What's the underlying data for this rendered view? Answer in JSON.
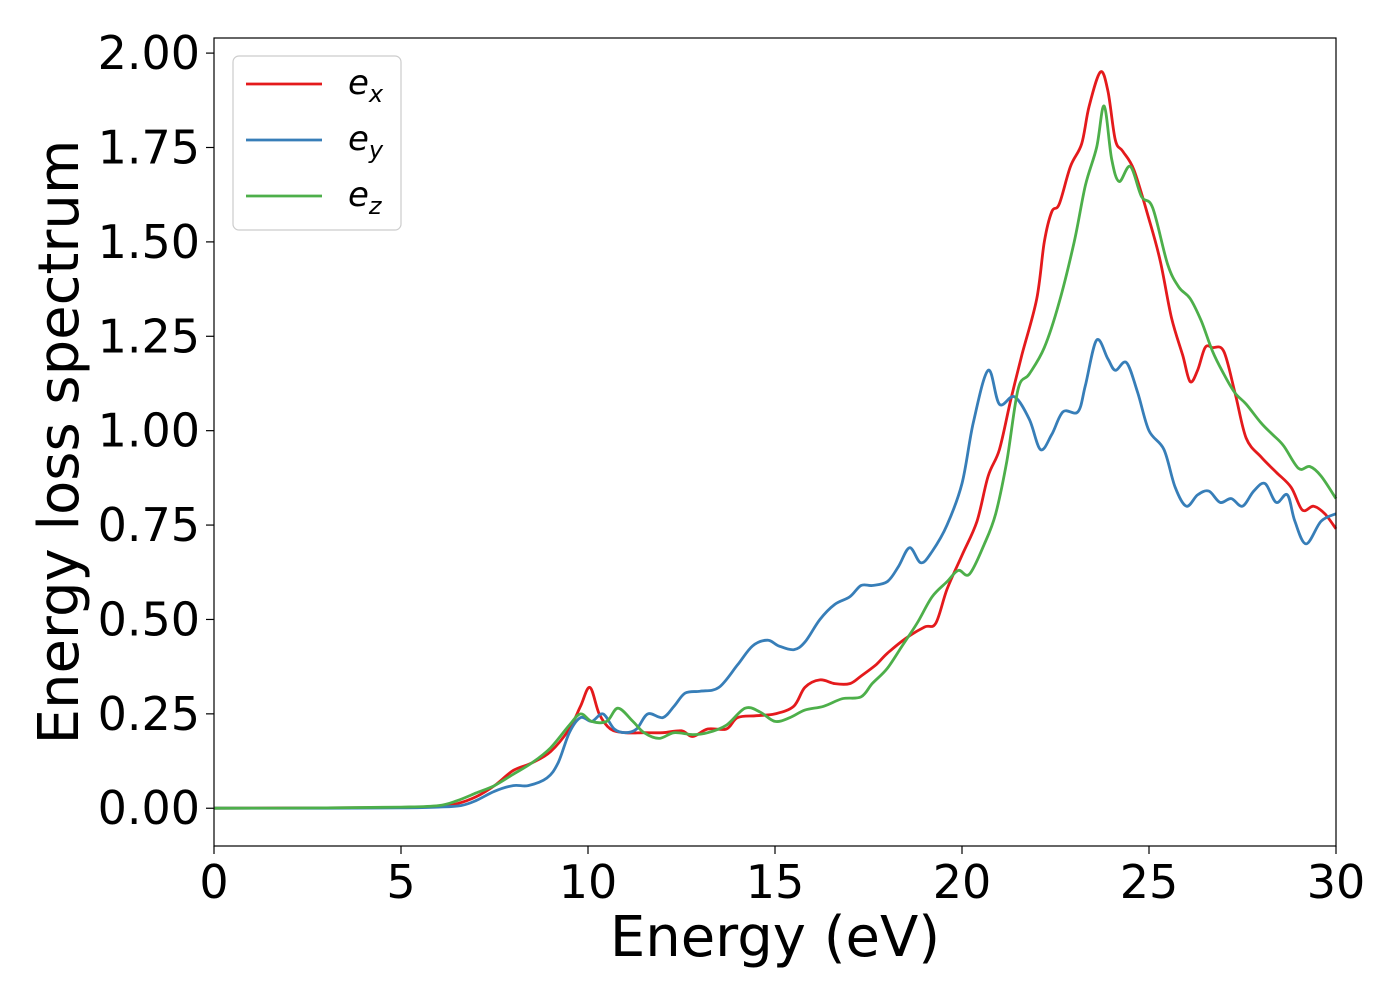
{
  "chart_data": {
    "type": "line",
    "title": "",
    "xlabel": "Energy (eV)",
    "ylabel": "Energy loss spectrum",
    "xlim": [
      0,
      30
    ],
    "ylim": [
      -0.1,
      2.04
    ],
    "xticks": [
      0,
      5,
      10,
      15,
      20,
      25,
      30
    ],
    "xtick_labels": [
      "0",
      "5",
      "10",
      "15",
      "20",
      "25",
      "30"
    ],
    "yticks": [
      0,
      0.25,
      0.5,
      0.75,
      1.0,
      1.25,
      1.5,
      1.75,
      2.0
    ],
    "ytick_labels": [
      "0.00",
      "0.25",
      "0.50",
      "0.75",
      "1.00",
      "1.25",
      "1.50",
      "1.75",
      "2.00"
    ],
    "grid": false,
    "legend_position": "top-left",
    "series": [
      {
        "name": "e",
        "subscript": "x",
        "color": "#e41a1c",
        "points": [
          [
            0,
            0
          ],
          [
            3,
            0.001
          ],
          [
            5,
            0.002
          ],
          [
            6,
            0.005
          ],
          [
            6.5,
            0.012
          ],
          [
            7,
            0.03
          ],
          [
            7.5,
            0.06
          ],
          [
            8,
            0.1
          ],
          [
            8.5,
            0.12
          ],
          [
            9,
            0.15
          ],
          [
            9.5,
            0.21
          ],
          [
            9.8,
            0.27
          ],
          [
            10.05,
            0.32
          ],
          [
            10.3,
            0.25
          ],
          [
            10.6,
            0.21
          ],
          [
            11,
            0.2
          ],
          [
            11.5,
            0.2
          ],
          [
            12,
            0.2
          ],
          [
            12.5,
            0.205
          ],
          [
            12.8,
            0.19
          ],
          [
            13.2,
            0.21
          ],
          [
            13.7,
            0.21
          ],
          [
            14,
            0.24
          ],
          [
            14.5,
            0.245
          ],
          [
            15,
            0.25
          ],
          [
            15.5,
            0.27
          ],
          [
            15.8,
            0.32
          ],
          [
            16.2,
            0.34
          ],
          [
            16.6,
            0.33
          ],
          [
            17,
            0.33
          ],
          [
            17.3,
            0.35
          ],
          [
            17.7,
            0.38
          ],
          [
            18,
            0.41
          ],
          [
            18.5,
            0.45
          ],
          [
            19,
            0.48
          ],
          [
            19.3,
            0.49
          ],
          [
            19.6,
            0.58
          ],
          [
            20,
            0.67
          ],
          [
            20.4,
            0.76
          ],
          [
            20.7,
            0.88
          ],
          [
            21,
            0.95
          ],
          [
            21.3,
            1.08
          ],
          [
            21.6,
            1.2
          ],
          [
            22,
            1.35
          ],
          [
            22.2,
            1.5
          ],
          [
            22.4,
            1.58
          ],
          [
            22.6,
            1.6
          ],
          [
            22.9,
            1.7
          ],
          [
            23.2,
            1.76
          ],
          [
            23.4,
            1.86
          ],
          [
            23.7,
            1.95
          ],
          [
            23.9,
            1.9
          ],
          [
            24.1,
            1.77
          ],
          [
            24.3,
            1.74
          ],
          [
            24.6,
            1.69
          ],
          [
            25,
            1.56
          ],
          [
            25.3,
            1.45
          ],
          [
            25.6,
            1.3
          ],
          [
            25.9,
            1.2
          ],
          [
            26.1,
            1.13
          ],
          [
            26.3,
            1.16
          ],
          [
            26.5,
            1.22
          ],
          [
            26.7,
            1.22
          ],
          [
            27,
            1.21
          ],
          [
            27.3,
            1.1
          ],
          [
            27.6,
            0.98
          ],
          [
            28,
            0.93
          ],
          [
            28.4,
            0.89
          ],
          [
            28.8,
            0.85
          ],
          [
            29.1,
            0.79
          ],
          [
            29.4,
            0.8
          ],
          [
            29.7,
            0.78
          ],
          [
            30,
            0.74
          ]
        ]
      },
      {
        "name": "e",
        "subscript": "y",
        "color": "#377eb8",
        "points": [
          [
            0,
            0
          ],
          [
            3,
            0.0
          ],
          [
            5,
            0.001
          ],
          [
            6,
            0.003
          ],
          [
            6.6,
            0.007
          ],
          [
            7,
            0.02
          ],
          [
            7.5,
            0.045
          ],
          [
            8,
            0.06
          ],
          [
            8.4,
            0.06
          ],
          [
            8.9,
            0.08
          ],
          [
            9.2,
            0.12
          ],
          [
            9.5,
            0.2
          ],
          [
            9.8,
            0.24
          ],
          [
            10.1,
            0.23
          ],
          [
            10.4,
            0.25
          ],
          [
            10.7,
            0.21
          ],
          [
            11,
            0.2
          ],
          [
            11.3,
            0.21
          ],
          [
            11.6,
            0.25
          ],
          [
            12,
            0.24
          ],
          [
            12.3,
            0.27
          ],
          [
            12.6,
            0.305
          ],
          [
            13,
            0.31
          ],
          [
            13.5,
            0.32
          ],
          [
            14,
            0.38
          ],
          [
            14.4,
            0.43
          ],
          [
            14.8,
            0.445
          ],
          [
            15.1,
            0.43
          ],
          [
            15.5,
            0.42
          ],
          [
            15.8,
            0.44
          ],
          [
            16.2,
            0.5
          ],
          [
            16.6,
            0.54
          ],
          [
            17,
            0.56
          ],
          [
            17.3,
            0.59
          ],
          [
            17.6,
            0.59
          ],
          [
            18,
            0.6
          ],
          [
            18.3,
            0.64
          ],
          [
            18.6,
            0.69
          ],
          [
            18.9,
            0.65
          ],
          [
            19.2,
            0.68
          ],
          [
            19.6,
            0.75
          ],
          [
            20,
            0.86
          ],
          [
            20.3,
            1.02
          ],
          [
            20.7,
            1.16
          ],
          [
            21,
            1.07
          ],
          [
            21.4,
            1.09
          ],
          [
            21.8,
            1.03
          ],
          [
            22.1,
            0.95
          ],
          [
            22.4,
            0.99
          ],
          [
            22.7,
            1.05
          ],
          [
            23.1,
            1.05
          ],
          [
            23.3,
            1.12
          ],
          [
            23.6,
            1.24
          ],
          [
            23.9,
            1.19
          ],
          [
            24.1,
            1.16
          ],
          [
            24.4,
            1.18
          ],
          [
            24.7,
            1.1
          ],
          [
            25,
            1.0
          ],
          [
            25.4,
            0.95
          ],
          [
            25.7,
            0.85
          ],
          [
            26,
            0.8
          ],
          [
            26.3,
            0.83
          ],
          [
            26.6,
            0.84
          ],
          [
            26.9,
            0.81
          ],
          [
            27.2,
            0.82
          ],
          [
            27.5,
            0.8
          ],
          [
            27.8,
            0.84
          ],
          [
            28.1,
            0.86
          ],
          [
            28.4,
            0.81
          ],
          [
            28.7,
            0.83
          ],
          [
            28.9,
            0.76
          ],
          [
            29.2,
            0.7
          ],
          [
            29.6,
            0.76
          ],
          [
            30,
            0.78
          ]
        ]
      },
      {
        "name": "e",
        "subscript": "z",
        "color": "#4daf4a",
        "points": [
          [
            0,
            0
          ],
          [
            3,
            0.001
          ],
          [
            5,
            0.003
          ],
          [
            6,
            0.007
          ],
          [
            6.5,
            0.02
          ],
          [
            7,
            0.04
          ],
          [
            7.5,
            0.06
          ],
          [
            8,
            0.09
          ],
          [
            8.5,
            0.12
          ],
          [
            9,
            0.16
          ],
          [
            9.5,
            0.22
          ],
          [
            9.8,
            0.25
          ],
          [
            10.1,
            0.23
          ],
          [
            10.5,
            0.23
          ],
          [
            10.8,
            0.265
          ],
          [
            11.2,
            0.23
          ],
          [
            11.5,
            0.2
          ],
          [
            11.9,
            0.185
          ],
          [
            12.3,
            0.2
          ],
          [
            12.8,
            0.195
          ],
          [
            13.2,
            0.2
          ],
          [
            13.7,
            0.22
          ],
          [
            14.2,
            0.265
          ],
          [
            14.6,
            0.255
          ],
          [
            15,
            0.23
          ],
          [
            15.4,
            0.24
          ],
          [
            15.8,
            0.26
          ],
          [
            16.3,
            0.27
          ],
          [
            16.8,
            0.29
          ],
          [
            17.3,
            0.295
          ],
          [
            17.6,
            0.33
          ],
          [
            18,
            0.37
          ],
          [
            18.4,
            0.43
          ],
          [
            18.8,
            0.49
          ],
          [
            19.2,
            0.56
          ],
          [
            19.6,
            0.6
          ],
          [
            19.9,
            0.63
          ],
          [
            20.2,
            0.62
          ],
          [
            20.6,
            0.7
          ],
          [
            20.9,
            0.78
          ],
          [
            21.2,
            0.92
          ],
          [
            21.5,
            1.11
          ],
          [
            21.8,
            1.15
          ],
          [
            22.2,
            1.22
          ],
          [
            22.6,
            1.34
          ],
          [
            23,
            1.5
          ],
          [
            23.3,
            1.65
          ],
          [
            23.6,
            1.75
          ],
          [
            23.8,
            1.86
          ],
          [
            24,
            1.72
          ],
          [
            24.2,
            1.66
          ],
          [
            24.5,
            1.7
          ],
          [
            24.8,
            1.62
          ],
          [
            25.1,
            1.59
          ],
          [
            25.5,
            1.44
          ],
          [
            25.8,
            1.38
          ],
          [
            26.1,
            1.35
          ],
          [
            26.4,
            1.29
          ],
          [
            26.7,
            1.21
          ],
          [
            27,
            1.15
          ],
          [
            27.3,
            1.1
          ],
          [
            27.6,
            1.07
          ],
          [
            28,
            1.02
          ],
          [
            28.3,
            0.99
          ],
          [
            28.6,
            0.96
          ],
          [
            29,
            0.9
          ],
          [
            29.3,
            0.905
          ],
          [
            29.6,
            0.88
          ],
          [
            30,
            0.82
          ]
        ]
      }
    ]
  }
}
